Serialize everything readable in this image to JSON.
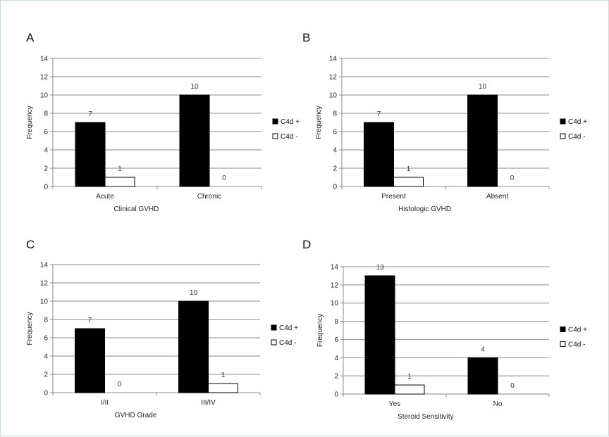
{
  "chart_data": [
    {
      "panel": "A",
      "type": "bar",
      "categories": [
        "Acute",
        "Chronic"
      ],
      "series": [
        {
          "name": "C4d +",
          "color": "#000000",
          "values": [
            7,
            10
          ]
        },
        {
          "name": "C4d -",
          "color": "#ffffff",
          "values": [
            1,
            0
          ]
        }
      ],
      "xlabel": "Clinical GVHD",
      "ylabel": "Frequency",
      "ylim": [
        0,
        14
      ],
      "yticks": [
        0,
        2,
        4,
        6,
        8,
        10,
        12,
        14
      ],
      "grid": true,
      "legend": "right"
    },
    {
      "panel": "B",
      "type": "bar",
      "categories": [
        "Present",
        "Absent"
      ],
      "series": [
        {
          "name": "C4d +",
          "color": "#000000",
          "values": [
            7,
            10
          ]
        },
        {
          "name": "C4d -",
          "color": "#ffffff",
          "values": [
            1,
            0
          ]
        }
      ],
      "xlabel": "Histologic GVHD",
      "ylabel": "Frequency",
      "ylim": [
        0,
        14
      ],
      "yticks": [
        0,
        2,
        4,
        6,
        8,
        10,
        12,
        14
      ],
      "grid": true,
      "legend": "right"
    },
    {
      "panel": "C",
      "type": "bar",
      "categories": [
        "I/II",
        "III/IV"
      ],
      "series": [
        {
          "name": "C4d +",
          "color": "#000000",
          "values": [
            7,
            10
          ]
        },
        {
          "name": "C4d -",
          "color": "#ffffff",
          "values": [
            0,
            1
          ]
        }
      ],
      "xlabel": "GVHD Grade",
      "ylabel": "Frequency",
      "ylim": [
        0,
        14
      ],
      "yticks": [
        0,
        2,
        4,
        6,
        8,
        10,
        12,
        14
      ],
      "grid": true,
      "legend": "right"
    },
    {
      "panel": "D",
      "type": "bar",
      "categories": [
        "Yes",
        "No"
      ],
      "series": [
        {
          "name": "C4d +",
          "color": "#000000",
          "values": [
            13,
            4
          ]
        },
        {
          "name": "C4d -",
          "color": "#ffffff",
          "values": [
            1,
            0
          ]
        }
      ],
      "xlabel": "Steroid Sensitivity",
      "ylabel": "Frequency",
      "ylim": [
        0,
        14
      ],
      "yticks": [
        0,
        2,
        4,
        6,
        8,
        10,
        12,
        14
      ],
      "grid": true,
      "legend": "right"
    }
  ]
}
